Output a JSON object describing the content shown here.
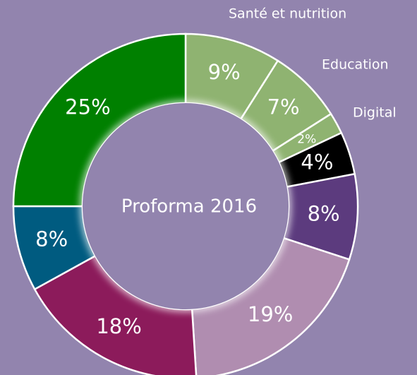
{
  "chart_data": {
    "type": "donut",
    "center_label": "Proforma 2016",
    "categories": [
      "Santé et nutrition",
      "Education",
      "Digital",
      null,
      null,
      null,
      null,
      null,
      null
    ],
    "values": [
      9,
      7,
      2,
      4,
      8,
      19,
      18,
      8,
      25
    ],
    "value_labels": [
      "9%",
      "7%",
      "2%",
      "4%",
      "8%",
      "19%",
      "18%",
      "8%",
      "25%"
    ],
    "colors": [
      "#8fb371",
      "#8fb371",
      "#8fb371",
      "#000000",
      "#5c3b7e",
      "#b08db0",
      "#8c1b5b",
      "#005b80",
      "#008000"
    ]
  }
}
